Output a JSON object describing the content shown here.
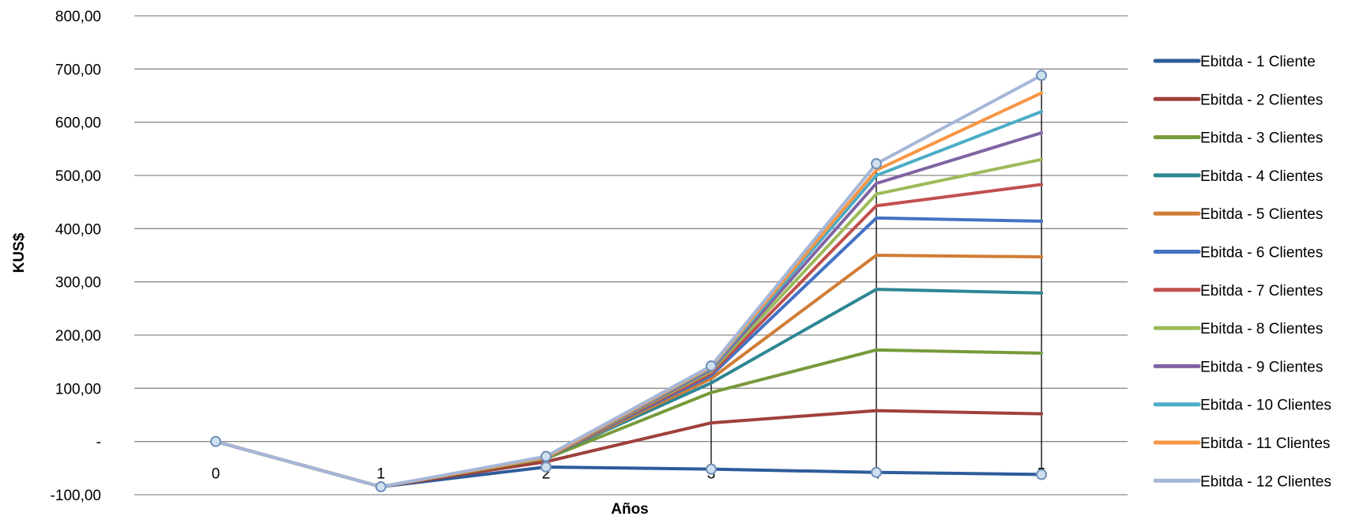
{
  "chart_data": {
    "type": "line",
    "title": "",
    "xlabel": "Años",
    "ylabel": "KUS$",
    "ylim": [
      -100,
      800
    ],
    "y_ticks": [
      -100,
      0,
      100,
      200,
      300,
      400,
      500,
      600,
      700,
      800
    ],
    "y_tick_labels": [
      "-100,00",
      "-",
      "100,00",
      "200,00",
      "300,00",
      "400,00",
      "500,00",
      "600,00",
      "700,00",
      "800,00"
    ],
    "x": [
      0,
      1,
      2,
      3,
      4,
      5
    ],
    "x_tick_labels": [
      "0",
      "1",
      "2",
      "3",
      "4",
      "5"
    ],
    "grid": "horizontal",
    "drop_lines": true,
    "legend_position": "right",
    "series": [
      {
        "name": "Ebitda - 1 Cliente",
        "color": "#2E5C9B",
        "values": [
          0,
          -85,
          -48,
          -52,
          -58,
          -62
        ]
      },
      {
        "name": "Ebitda - 2 Clientes",
        "color": "#A0403C",
        "values": [
          0,
          -85,
          -38,
          35,
          58,
          52
        ]
      },
      {
        "name": "Ebitda - 3 Clientes",
        "color": "#779A3B",
        "values": [
          0,
          -85,
          -32,
          92,
          172,
          166
        ]
      },
      {
        "name": "Ebitda - 4 Clientes",
        "color": "#2E8694",
        "values": [
          0,
          -85,
          -30,
          110,
          286,
          279
        ]
      },
      {
        "name": "Ebitda - 5 Clientes",
        "color": "#D07D35",
        "values": [
          0,
          -85,
          -30,
          118,
          350,
          347
        ]
      },
      {
        "name": "Ebitda - 6 Clientes",
        "color": "#4472C4",
        "values": [
          0,
          -85,
          -30,
          124,
          420,
          414
        ]
      },
      {
        "name": "Ebitda - 7 Clientes",
        "color": "#C0504D",
        "values": [
          0,
          -85,
          -30,
          128,
          443,
          483
        ]
      },
      {
        "name": "Ebitda - 8 Clientes",
        "color": "#9BBB59",
        "values": [
          0,
          -85,
          -30,
          132,
          465,
          530
        ]
      },
      {
        "name": "Ebitda - 9 Clientes",
        "color": "#8064A2",
        "values": [
          0,
          -85,
          -30,
          135,
          485,
          580
        ]
      },
      {
        "name": "Ebitda - 10 Clientes",
        "color": "#4BACC6",
        "values": [
          0,
          -85,
          -30,
          138,
          500,
          620
        ]
      },
      {
        "name": "Ebitda - 11 Clientes",
        "color": "#F79646",
        "values": [
          0,
          -85,
          -30,
          140,
          510,
          655
        ]
      },
      {
        "name": "Ebitda - 12 Clientes",
        "color": "#A5B6D8",
        "values": [
          0,
          -85,
          -28,
          142,
          522,
          688
        ]
      }
    ]
  }
}
